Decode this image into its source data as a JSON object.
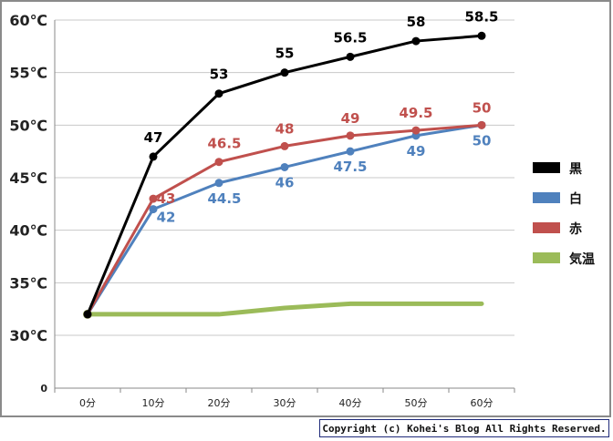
{
  "chart_data": {
    "type": "line",
    "categories": [
      "0分",
      "10分",
      "20分",
      "30分",
      "40分",
      "50分",
      "60分"
    ],
    "ylim": [
      0,
      60
    ],
    "y_ticks": [
      {
        "value": 0,
        "label": "0"
      },
      {
        "value": 30,
        "label": "30℃"
      },
      {
        "value": 35,
        "label": "35℃"
      },
      {
        "value": 40,
        "label": "40℃"
      },
      {
        "value": 45,
        "label": "45℃"
      },
      {
        "value": 50,
        "label": "50℃"
      },
      {
        "value": 55,
        "label": "55℃"
      },
      {
        "value": 60,
        "label": "60℃"
      }
    ],
    "axis_break": "between 0 and 30",
    "grid": true,
    "legend_position": "right",
    "series": [
      {
        "name": "黒",
        "color": "#000000",
        "values": [
          32,
          47,
          53,
          55,
          56.5,
          58,
          58.5
        ],
        "data_labels": [
          "",
          "47",
          "53",
          "55",
          "56.5",
          "58",
          "58.5"
        ]
      },
      {
        "name": "白",
        "color": "#4f81bd",
        "values": [
          32,
          42,
          44.5,
          46,
          47.5,
          49,
          50
        ],
        "data_labels": [
          "",
          "42",
          "44.5",
          "46",
          "47.5",
          "49",
          "50"
        ]
      },
      {
        "name": "赤",
        "color": "#c0504d",
        "values": [
          32,
          43,
          46.5,
          48,
          49,
          49.5,
          50
        ],
        "data_labels": [
          "",
          "43",
          "46.5",
          "48",
          "49",
          "49.5",
          "50"
        ]
      },
      {
        "name": "気温",
        "color": "#9bbb59",
        "values": [
          32,
          32,
          32,
          32.6,
          33,
          33,
          33
        ],
        "data_labels": [
          "",
          "",
          "",
          "",
          "",
          "",
          ""
        ]
      }
    ]
  },
  "footer": {
    "copyright": "Copyright (c) Kohei's Blog All Rights Reserved."
  }
}
